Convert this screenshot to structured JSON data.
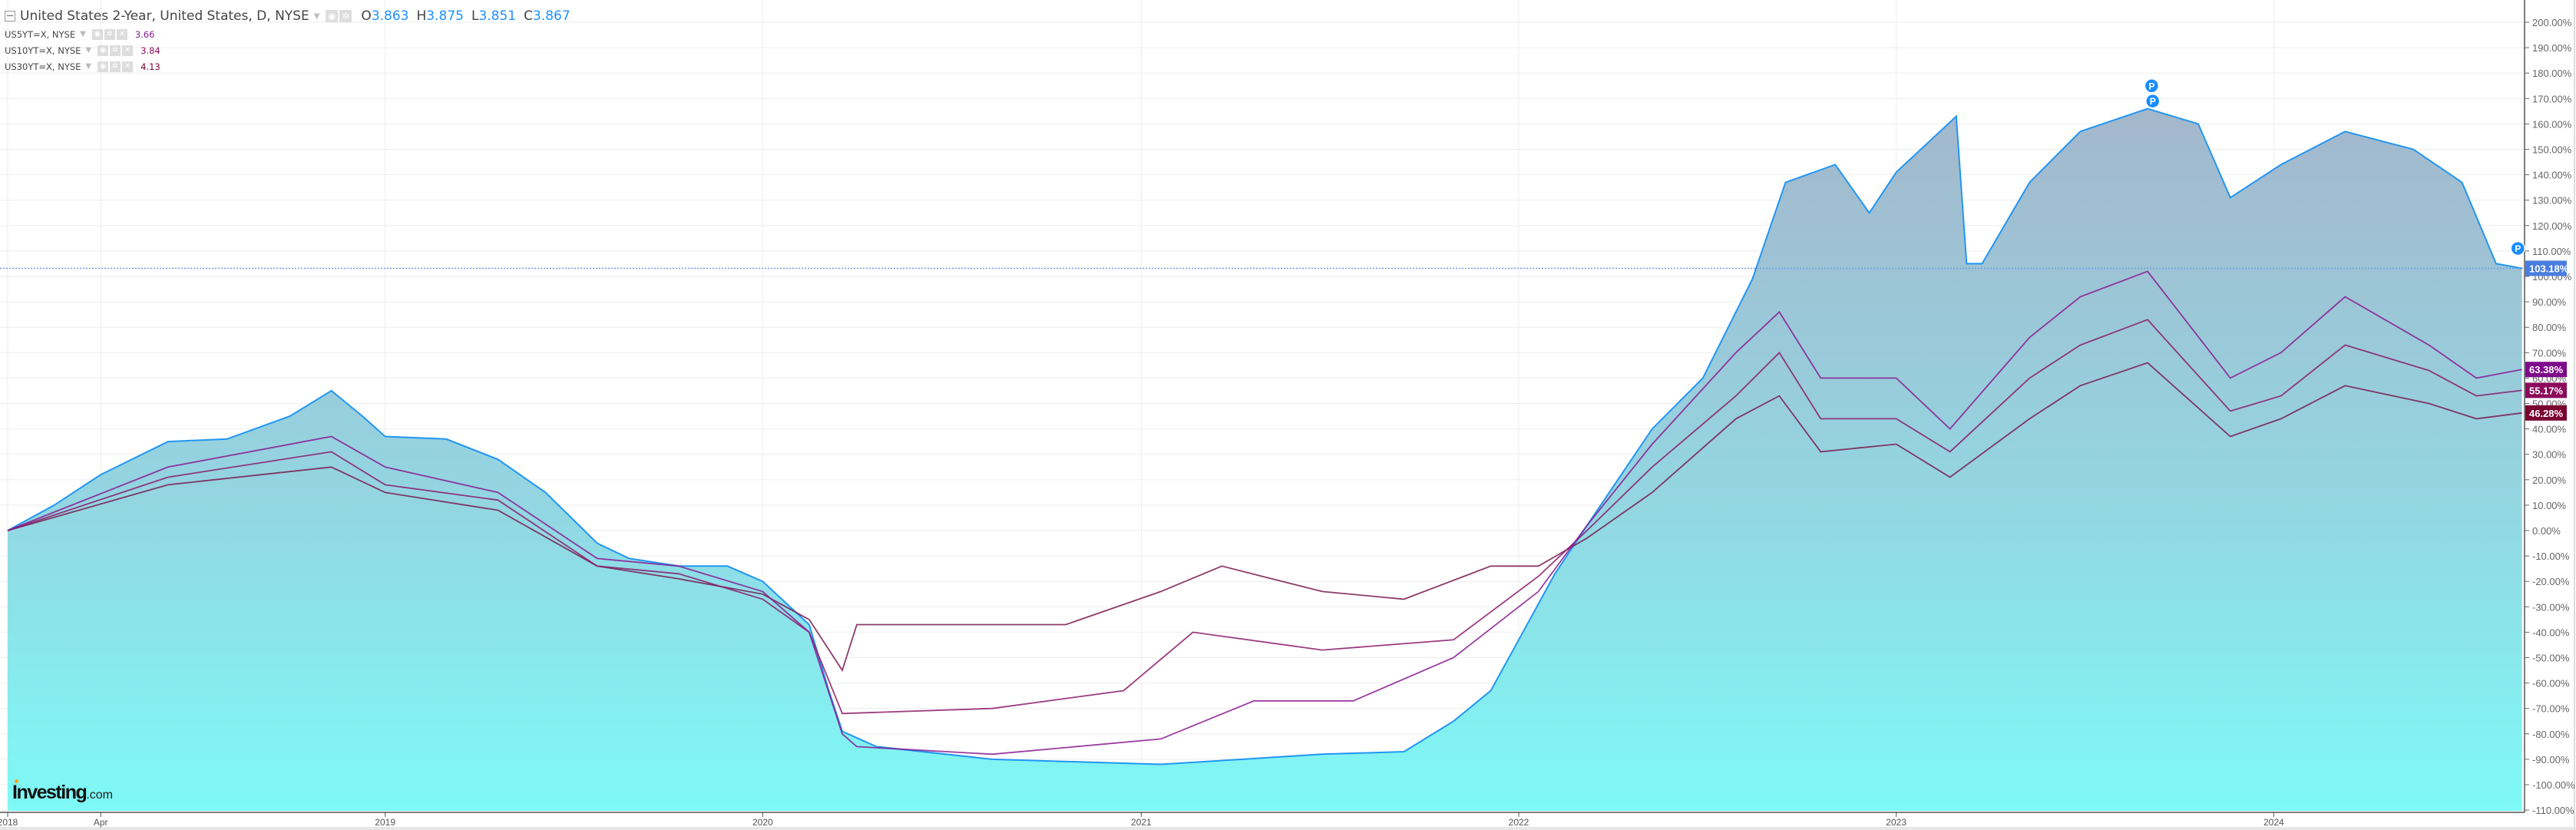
{
  "legend": {
    "main": {
      "title": "United States 2-Year, United States, D, NYSE",
      "open_label": "O",
      "open": "3.863",
      "high_label": "H",
      "high": "3.875",
      "low_label": "L",
      "low": "3.851",
      "close_label": "C",
      "close": "3.867"
    },
    "sub": [
      {
        "label": "US5YT=X, NYSE",
        "value": "3.66",
        "color": "#8a1a92"
      },
      {
        "label": "US10YT=X, NYSE",
        "value": "3.84",
        "color": "#8b0a5a"
      },
      {
        "label": "US30YT=X, NYSE",
        "value": "4.13",
        "color": "#7a0030"
      }
    ],
    "icons": [
      "eye-icon",
      "gear-icon",
      "close-icon"
    ]
  },
  "logo": {
    "brand": "Investing",
    "suffix": ".com"
  },
  "chart_data": {
    "type": "line",
    "x_type": "date",
    "y_unit": "%",
    "ylim": [
      -110,
      200
    ],
    "grid": true,
    "y_ticks": [
      "200.00%",
      "190.00%",
      "180.00%",
      "170.00%",
      "160.00%",
      "150.00%",
      "140.00%",
      "130.00%",
      "120.00%",
      "110.00%",
      "100.00%",
      "90.00%",
      "80.00%",
      "70.00%",
      "60.00%",
      "50.00%",
      "40.00%",
      "30.00%",
      "20.00%",
      "10.00%",
      "0.00%",
      "-10.00%",
      "-20.00%",
      "-30.00%",
      "-40.00%",
      "-50.00%",
      "-60.00%",
      "-70.00%",
      "-80.00%",
      "-90.00%",
      "-100.00%",
      "-110.00%"
    ],
    "x_ticks": [
      {
        "date": "2018-01-01",
        "label": "2018"
      },
      {
        "date": "2018-04-01",
        "label": "Apr"
      },
      {
        "date": "2019-01-01",
        "label": "2019"
      },
      {
        "date": "2020-01-01",
        "label": "2020"
      },
      {
        "date": "2021-01-01",
        "label": "2021"
      },
      {
        "date": "2022-01-01",
        "label": "2022"
      },
      {
        "date": "2023-01-01",
        "label": "2023"
      },
      {
        "date": "2024-01-01",
        "label": "2024"
      }
    ],
    "series": [
      {
        "name": "United States 2-Year",
        "style": "area",
        "color": "#2196f3",
        "last_label": "103.18%",
        "label_color": "#4a7de0",
        "points": [
          [
            "2018-01-01",
            0
          ],
          [
            "2018-02-15",
            10
          ],
          [
            "2018-04-01",
            22
          ],
          [
            "2018-06-05",
            35
          ],
          [
            "2018-08-01",
            36
          ],
          [
            "2018-10-01",
            45
          ],
          [
            "2018-11-10",
            55
          ],
          [
            "2018-12-10",
            45
          ],
          [
            "2019-01-01",
            37
          ],
          [
            "2019-03-01",
            36
          ],
          [
            "2019-04-20",
            28
          ],
          [
            "2019-06-05",
            15
          ],
          [
            "2019-07-25",
            -5
          ],
          [
            "2019-08-25",
            -11
          ],
          [
            "2019-10-12",
            -14
          ],
          [
            "2019-11-28",
            -14
          ],
          [
            "2020-01-01",
            -20
          ],
          [
            "2020-02-15",
            -37
          ],
          [
            "2020-03-05",
            -63
          ],
          [
            "2020-03-18",
            -79
          ],
          [
            "2020-04-20",
            -85
          ],
          [
            "2020-08-10",
            -90
          ],
          [
            "2021-01-20",
            -92
          ],
          [
            "2021-06-25",
            -88
          ],
          [
            "2021-09-12",
            -87
          ],
          [
            "2021-10-30",
            -75
          ],
          [
            "2021-12-05",
            -63
          ],
          [
            "2022-01-01",
            -43
          ],
          [
            "2022-02-05",
            -17
          ],
          [
            "2022-03-08",
            2
          ],
          [
            "2022-05-10",
            40
          ],
          [
            "2022-06-28",
            60
          ],
          [
            "2022-08-15",
            99
          ],
          [
            "2022-09-16",
            137
          ],
          [
            "2022-11-03",
            144
          ],
          [
            "2022-12-06",
            125
          ],
          [
            "2023-01-01",
            141
          ],
          [
            "2023-02-28",
            163
          ],
          [
            "2023-03-10",
            105
          ],
          [
            "2023-03-25",
            105
          ],
          [
            "2023-05-10",
            137
          ],
          [
            "2023-06-28",
            157
          ],
          [
            "2023-09-01",
            166
          ],
          [
            "2023-10-20",
            160
          ],
          [
            "2023-11-20",
            131
          ],
          [
            "2024-01-08",
            144
          ],
          [
            "2024-03-10",
            157
          ],
          [
            "2024-05-15",
            150
          ],
          [
            "2024-07-01",
            137
          ],
          [
            "2024-08-03",
            105
          ],
          [
            "2024-08-28",
            103.18
          ]
        ]
      },
      {
        "name": "US5YT=X",
        "style": "line",
        "color": "#8a1a92",
        "last_label": "63.38%",
        "label_color": "#7d0a8a",
        "points": [
          [
            "2018-01-01",
            0
          ],
          [
            "2018-06-05",
            25
          ],
          [
            "2018-11-10",
            37
          ],
          [
            "2019-01-01",
            25
          ],
          [
            "2019-04-20",
            15
          ],
          [
            "2019-07-25",
            -11
          ],
          [
            "2019-10-12",
            -14
          ],
          [
            "2020-01-01",
            -24
          ],
          [
            "2020-02-15",
            -40
          ],
          [
            "2020-03-18",
            -80
          ],
          [
            "2020-04-01",
            -85
          ],
          [
            "2020-08-10",
            -88
          ],
          [
            "2021-01-20",
            -82
          ],
          [
            "2021-04-20",
            -67
          ],
          [
            "2021-07-25",
            -67
          ],
          [
            "2021-10-30",
            -50
          ],
          [
            "2022-01-20",
            -24
          ],
          [
            "2022-03-08",
            2
          ],
          [
            "2022-05-10",
            34
          ],
          [
            "2022-07-30",
            70
          ],
          [
            "2022-09-10",
            86
          ],
          [
            "2022-10-20",
            60
          ],
          [
            "2023-01-01",
            60
          ],
          [
            "2023-02-22",
            40
          ],
          [
            "2023-05-10",
            76
          ],
          [
            "2023-06-28",
            92
          ],
          [
            "2023-09-01",
            102
          ],
          [
            "2023-11-20",
            60
          ],
          [
            "2024-01-08",
            70
          ],
          [
            "2024-03-10",
            92
          ],
          [
            "2024-05-30",
            73
          ],
          [
            "2024-07-15",
            60
          ],
          [
            "2024-08-28",
            63.38
          ]
        ]
      },
      {
        "name": "US10YT=X",
        "style": "line",
        "color": "#8b1a6a",
        "last_label": "55.17%",
        "label_color": "#8b0a5a",
        "points": [
          [
            "2018-01-01",
            0
          ],
          [
            "2018-06-05",
            21
          ],
          [
            "2018-11-10",
            31
          ],
          [
            "2019-01-01",
            18
          ],
          [
            "2019-04-20",
            12
          ],
          [
            "2019-07-25",
            -14
          ],
          [
            "2019-10-12",
            -17
          ],
          [
            "2020-01-01",
            -27
          ],
          [
            "2020-02-15",
            -40
          ],
          [
            "2020-03-18",
            -72
          ],
          [
            "2020-08-10",
            -70
          ],
          [
            "2020-12-15",
            -63
          ],
          [
            "2021-02-20",
            -40
          ],
          [
            "2021-06-25",
            -47
          ],
          [
            "2021-10-30",
            -43
          ],
          [
            "2022-01-20",
            -18
          ],
          [
            "2022-03-08",
            0
          ],
          [
            "2022-05-10",
            25
          ],
          [
            "2022-07-30",
            53
          ],
          [
            "2022-09-10",
            70
          ],
          [
            "2022-10-20",
            44
          ],
          [
            "2023-01-01",
            44
          ],
          [
            "2023-02-22",
            31
          ],
          [
            "2023-05-10",
            60
          ],
          [
            "2023-06-28",
            73
          ],
          [
            "2023-09-01",
            83
          ],
          [
            "2023-11-20",
            47
          ],
          [
            "2024-01-08",
            53
          ],
          [
            "2024-03-10",
            73
          ],
          [
            "2024-05-30",
            63
          ],
          [
            "2024-07-15",
            53
          ],
          [
            "2024-08-28",
            55.17
          ]
        ]
      },
      {
        "name": "US30YT=X",
        "style": "line",
        "color": "#7a1a50",
        "last_label": "46.28%",
        "label_color": "#7a0030",
        "points": [
          [
            "2018-01-01",
            0
          ],
          [
            "2018-06-05",
            18
          ],
          [
            "2018-11-10",
            25
          ],
          [
            "2019-01-01",
            15
          ],
          [
            "2019-04-20",
            8
          ],
          [
            "2019-07-25",
            -14
          ],
          [
            "2019-10-12",
            -19
          ],
          [
            "2020-01-01",
            -25
          ],
          [
            "2020-02-15",
            -35
          ],
          [
            "2020-03-18",
            -55
          ],
          [
            "2020-04-01",
            -37
          ],
          [
            "2020-10-20",
            -37
          ],
          [
            "2021-01-20",
            -24
          ],
          [
            "2021-03-20",
            -14
          ],
          [
            "2021-06-25",
            -24
          ],
          [
            "2021-09-12",
            -27
          ],
          [
            "2021-12-05",
            -14
          ],
          [
            "2022-01-20",
            -14
          ],
          [
            "2022-03-08",
            -3
          ],
          [
            "2022-05-10",
            15
          ],
          [
            "2022-07-30",
            44
          ],
          [
            "2022-09-10",
            53
          ],
          [
            "2022-10-20",
            31
          ],
          [
            "2023-01-01",
            34
          ],
          [
            "2023-02-22",
            21
          ],
          [
            "2023-05-10",
            44
          ],
          [
            "2023-06-28",
            57
          ],
          [
            "2023-09-01",
            66
          ],
          [
            "2023-11-20",
            37
          ],
          [
            "2024-01-08",
            44
          ],
          [
            "2024-03-10",
            57
          ],
          [
            "2024-05-30",
            50
          ],
          [
            "2024-07-15",
            44
          ],
          [
            "2024-08-28",
            46.28
          ]
        ]
      }
    ],
    "markers": [
      {
        "date": "2023-09-05",
        "value": 175,
        "label": "P"
      },
      {
        "date": "2023-09-06",
        "value": 169,
        "label": "P"
      },
      {
        "date": "2024-08-24",
        "value": 111,
        "label": "P"
      }
    ],
    "area_fill": {
      "top": "#a7b2c8",
      "mid": "#93d6e2",
      "bottom": "#7ef9f6"
    }
  }
}
